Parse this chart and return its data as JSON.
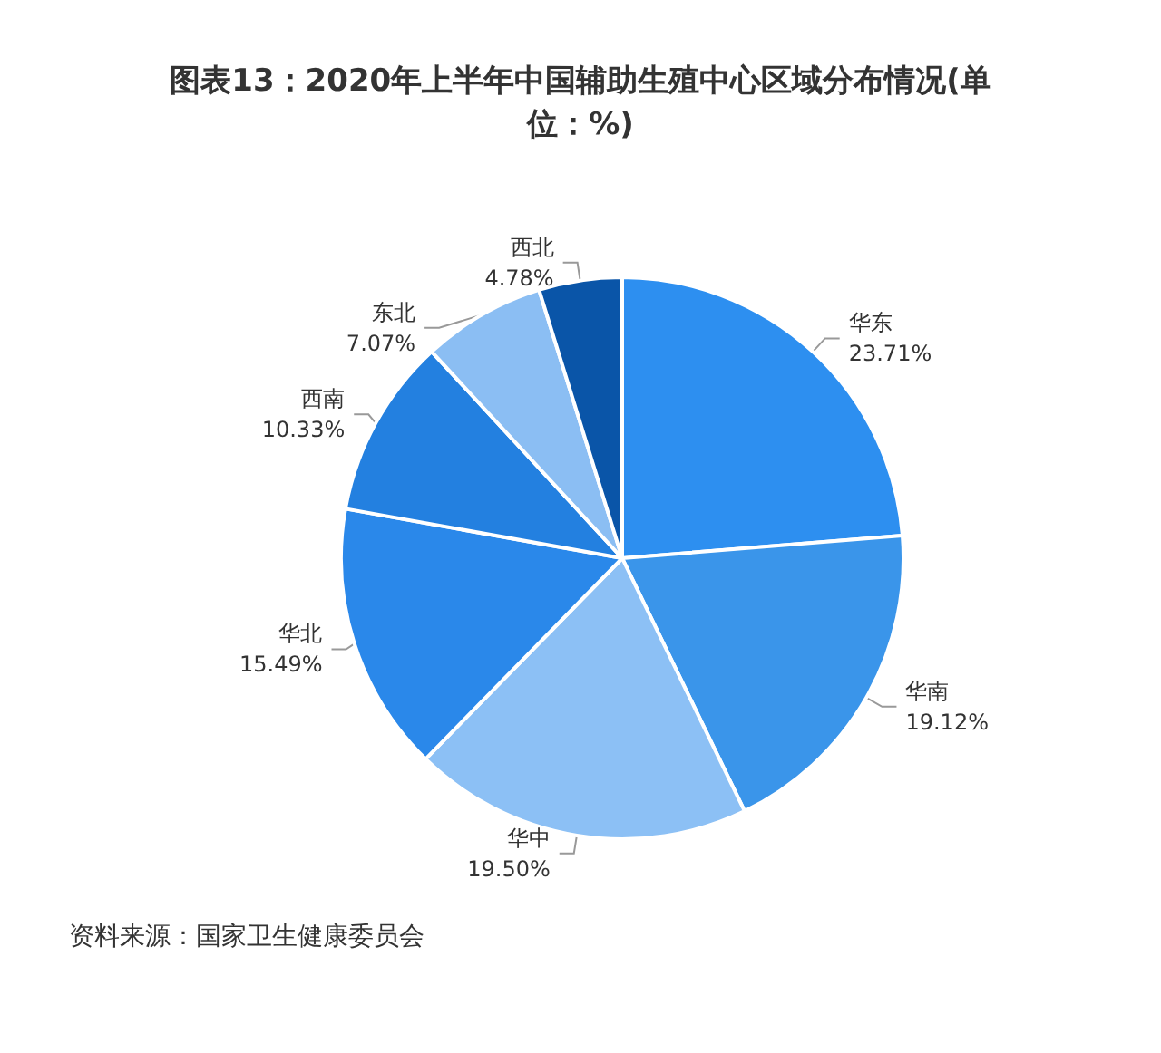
{
  "chart_data": {
    "type": "pie",
    "title": "图表13：2020年上半年中国辅助生殖中心区域分布情况(单位：%)",
    "categories": [
      "华东",
      "华南",
      "华中",
      "华北",
      "西南",
      "东北",
      "西北"
    ],
    "values": [
      23.71,
      19.12,
      19.5,
      15.49,
      10.33,
      7.07,
      4.78
    ],
    "value_labels": [
      "23.71%",
      "19.12%",
      "19.50%",
      "15.49%",
      "10.33%",
      "7.07%",
      "4.78%"
    ],
    "colors": [
      "#2d8ff0",
      "#3a95ea",
      "#8cc0f5",
      "#2a88ea",
      "#2380e0",
      "#8bbef3",
      "#0a55a8"
    ],
    "annotations": [
      "资料来源：国家卫生健康委员会"
    ],
    "legend": false
  }
}
